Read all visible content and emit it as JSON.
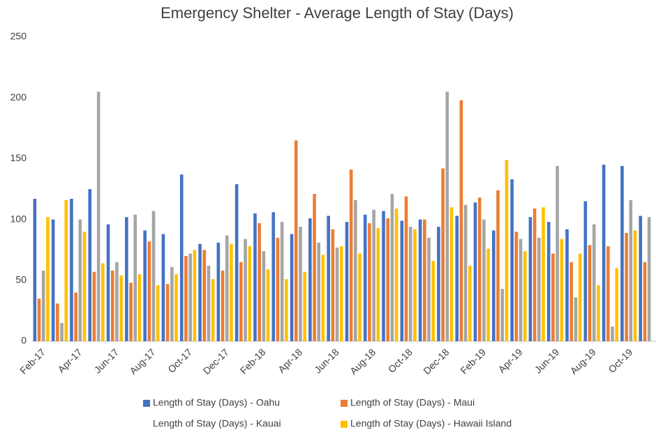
{
  "chart_data": {
    "type": "bar",
    "title": "Emergency Shelter - Average Length of Stay (Days)",
    "categories": [
      "Feb-17",
      null,
      "Apr-17",
      null,
      "Jun-17",
      null,
      "Aug-17",
      null,
      "Oct-17",
      null,
      "Dec-17",
      null,
      "Feb-18",
      null,
      "Apr-18",
      null,
      "Jun-18",
      null,
      "Aug-18",
      null,
      "Oct-18",
      null,
      "Dec-18",
      null,
      "Feb-19",
      null,
      "Apr-19",
      null,
      "Jun-19",
      null,
      "Aug-19",
      null,
      "Oct-19",
      null
    ],
    "series": [
      {
        "name": "Length of Stay (Days) - Oahu",
        "color": "#4472c4",
        "values": [
          117,
          100,
          117,
          125,
          96,
          102,
          91,
          88,
          137,
          80,
          81,
          129,
          105,
          106,
          88,
          101,
          103,
          98,
          104,
          107,
          99,
          100,
          94,
          103,
          114,
          91,
          133,
          102,
          98,
          92,
          115,
          145,
          144,
          103
        ]
      },
      {
        "name": "Length of Stay (Days) - Maui",
        "color": "#ed7d31",
        "values": [
          35,
          31,
          40,
          57,
          58,
          48,
          82,
          47,
          70,
          75,
          58,
          65,
          97,
          85,
          165,
          121,
          92,
          141,
          97,
          101,
          119,
          100,
          142,
          198,
          118,
          124,
          90,
          109,
          72,
          65,
          79,
          78,
          89,
          65
        ]
      },
      {
        "name": "Length of Stay (Days) - Kauai",
        "color": "#a5a5a5",
        "values": [
          58,
          15,
          100,
          205,
          65,
          104,
          107,
          61,
          72,
          62,
          87,
          84,
          74,
          98,
          94,
          81,
          77,
          116,
          108,
          121,
          94,
          85,
          205,
          112,
          100,
          43,
          84,
          85,
          144,
          36,
          96,
          12,
          116,
          102
        ]
      },
      {
        "name": "Length of Stay (Days) - Hawaii Island",
        "color": "#ffc000",
        "values": [
          102,
          116,
          90,
          64,
          54,
          55,
          46,
          55,
          75,
          51,
          80,
          78,
          59,
          51,
          57,
          71,
          78,
          72,
          93,
          109,
          92,
          66,
          110,
          62,
          76,
          149,
          74,
          110,
          84,
          72,
          46,
          60,
          91,
          null
        ]
      }
    ],
    "ylim": [
      0,
      250
    ],
    "yticks": [
      0,
      50,
      100,
      150,
      200,
      250
    ],
    "grid": false
  }
}
